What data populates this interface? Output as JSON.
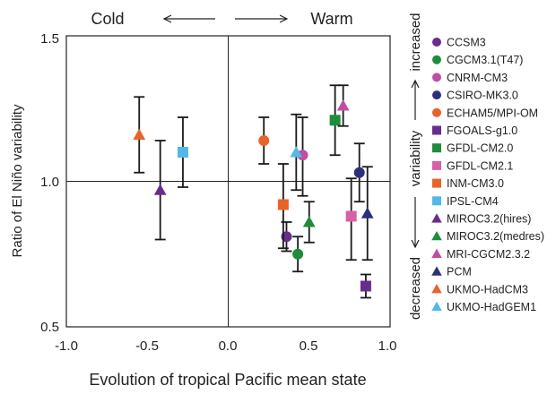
{
  "chart_data": {
    "type": "scatter",
    "xlabel": "Evolution of tropical Pacific mean state",
    "ylabel": "Ratio of El Niño variability",
    "xlim": [
      -1.0,
      1.0
    ],
    "ylim": [
      0.5,
      1.5
    ],
    "xticks": [
      "-1.0",
      "-0.5",
      "0.0",
      "0.5",
      "1.0"
    ],
    "yticks": [
      "0.5",
      "1.0",
      "1.5"
    ],
    "top_left_label": "Cold",
    "top_right_label": "Warm",
    "right_axis": {
      "top": "increased",
      "middle": "variability",
      "bottom": "decreased"
    },
    "grid": false,
    "legend_position": "right",
    "series": [
      {
        "name": "CCSM3",
        "marker": "circle",
        "color": "#6a2c8c",
        "x": 0.36,
        "y": 0.81,
        "lo": 0.76,
        "hi": 0.86
      },
      {
        "name": "CGCM3.1(T47)",
        "marker": "circle",
        "color": "#1f8c3c",
        "x": 0.43,
        "y": 0.75,
        "lo": 0.69,
        "hi": 0.81
      },
      {
        "name": "CNRM-CM3",
        "marker": "circle",
        "color": "#c04fa3",
        "x": 0.46,
        "y": 1.09,
        "lo": 0.95,
        "hi": 1.22
      },
      {
        "name": "CSIRO-MK3.0",
        "marker": "circle",
        "color": "#2c2f7a",
        "x": 0.81,
        "y": 1.03,
        "lo": 0.93,
        "hi": 1.13
      },
      {
        "name": "ECHAM5/MPI-OM",
        "marker": "circle",
        "color": "#e8632a",
        "x": 0.22,
        "y": 1.14,
        "lo": 1.06,
        "hi": 1.22
      },
      {
        "name": "FGOALS-g1.0",
        "marker": "square",
        "color": "#6a2c8c",
        "x": 0.85,
        "y": 0.64,
        "lo": 0.6,
        "hi": 0.68
      },
      {
        "name": "GFDL-CM2.0",
        "marker": "square",
        "color": "#1f8c3c",
        "x": 0.66,
        "y": 1.21,
        "lo": 1.09,
        "hi": 1.33
      },
      {
        "name": "GFDL-CM2.1",
        "marker": "square",
        "color": "#d65fa6",
        "x": 0.76,
        "y": 0.88,
        "lo": 0.73,
        "hi": 1.01
      },
      {
        "name": "INM-CM3.0",
        "marker": "square",
        "color": "#e8632a",
        "x": 0.34,
        "y": 0.92,
        "lo": 0.77,
        "hi": 1.06
      },
      {
        "name": "IPSL-CM4",
        "marker": "square",
        "color": "#52b8e8",
        "x": -0.28,
        "y": 1.1,
        "lo": 0.98,
        "hi": 1.22
      },
      {
        "name": "MIROC3.2(hires)",
        "marker": "triangle",
        "color": "#6a2c8c",
        "x": -0.42,
        "y": 0.97,
        "lo": 0.8,
        "hi": 1.14
      },
      {
        "name": "MIROC3.2(medres)",
        "marker": "triangle",
        "color": "#1f8c3c",
        "x": 0.5,
        "y": 0.86,
        "lo": 0.79,
        "hi": 0.93
      },
      {
        "name": "MRI-CGCM2.3.2",
        "marker": "triangle",
        "color": "#c04fa3",
        "x": 0.71,
        "y": 1.26,
        "lo": 1.19,
        "hi": 1.33
      },
      {
        "name": "PCM",
        "marker": "triangle",
        "color": "#2c2f7a",
        "x": 0.86,
        "y": 0.89,
        "lo": 0.73,
        "hi": 1.05
      },
      {
        "name": "UKMO-HadCM3",
        "marker": "triangle",
        "color": "#e8632a",
        "x": -0.55,
        "y": 1.16,
        "lo": 1.03,
        "hi": 1.29
      },
      {
        "name": "UKMO-HadGEM1",
        "marker": "triangle",
        "color": "#52b8e8",
        "x": 0.42,
        "y": 1.1,
        "lo": 0.97,
        "hi": 1.23
      }
    ]
  }
}
